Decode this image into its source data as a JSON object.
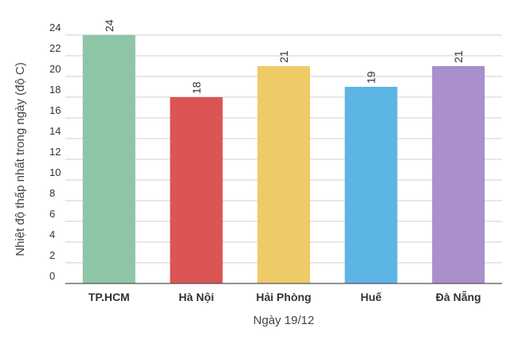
{
  "chart_data": {
    "type": "bar",
    "categories": [
      "TP.HCM",
      "Hà Nội",
      "Hải Phòng",
      "Huế",
      "Đà Nẵng"
    ],
    "values": [
      24,
      18,
      21,
      19,
      21
    ],
    "colors": [
      "#8ec5a7",
      "#dc5454",
      "#efcb68",
      "#5db5e6",
      "#a98fcb"
    ],
    "xlabel": "Ngày 19/12",
    "ylabel": "Nhiệt độ thấp nhất trong ngày (độ C)",
    "ylim": [
      0,
      24
    ],
    "yticks": [
      0,
      2,
      4,
      6,
      8,
      10,
      12,
      14,
      16,
      18,
      20,
      22,
      24
    ],
    "grid": true,
    "gridColor": "#cfcfcf"
  }
}
